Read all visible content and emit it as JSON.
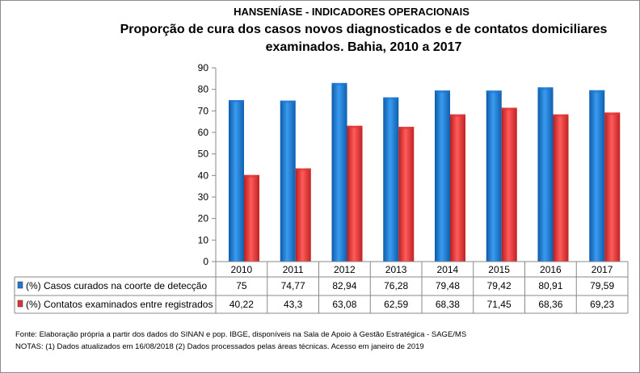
{
  "chart_data": {
    "type": "bar",
    "title": "HANSENÍASE - INDICADORES OPERACIONAIS",
    "subtitle_lines": [
      "Proporção de cura dos casos novos diagnosticados e de contatos domiciliares",
      "examinados.  Bahia, 2010 a 2017"
    ],
    "categories": [
      "2010",
      "2011",
      "2012",
      "2013",
      "2014",
      "2015",
      "2016",
      "2017"
    ],
    "series": [
      {
        "name": "(%) Casos curados na coorte de detecção",
        "color": "#1f78d1",
        "values": [
          75,
          74.77,
          82.94,
          76.28,
          79.48,
          79.42,
          80.91,
          79.59
        ],
        "labels": [
          "75",
          "74,77",
          "82,94",
          "76,28",
          "79,48",
          "79,42",
          "80,91",
          "79,59"
        ]
      },
      {
        "name": "(%) Contatos examinados entre registrados",
        "color": "#e03535",
        "values": [
          40.22,
          43.3,
          63.08,
          62.59,
          68.38,
          71.45,
          68.36,
          69.23
        ],
        "labels": [
          "40,22",
          "43,3",
          "63,08",
          "62,59",
          "68,38",
          "71,45",
          "68,36",
          "69,23"
        ]
      }
    ],
    "ylim": [
      0,
      90
    ],
    "yticks": [
      0,
      10,
      20,
      30,
      40,
      50,
      60,
      70,
      80,
      90
    ],
    "grid": false,
    "legend": "data-table"
  },
  "footer": {
    "source": "Fonte:  Elaboração própria a partir dos dados do  SINAN  e  pop. IBGE, disponíveis na Sala de Apoio à Gestão Estratégica -  SAGE/MS",
    "notes": " NOTAS: (1) Dados atualizados em 16/08/2018 (2) Dados processados pelas áreas técnicas. Acesso em janeiro de 2019"
  }
}
